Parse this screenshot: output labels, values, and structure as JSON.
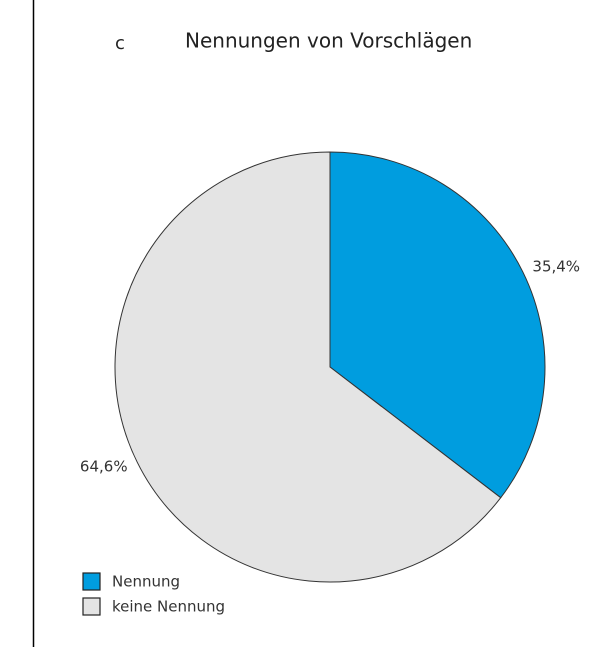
{
  "panel_label": "c",
  "chart_data": {
    "type": "pie",
    "title": "Nennungen von Vorschlägen",
    "categories": [
      "Nennung",
      "keine Nennung"
    ],
    "values": [
      35.4,
      64.6
    ],
    "value_labels": [
      "35,4%",
      "64,6%"
    ],
    "colors": [
      "#009ddf",
      "#e4e4e4"
    ],
    "legend": "bottom-left"
  }
}
